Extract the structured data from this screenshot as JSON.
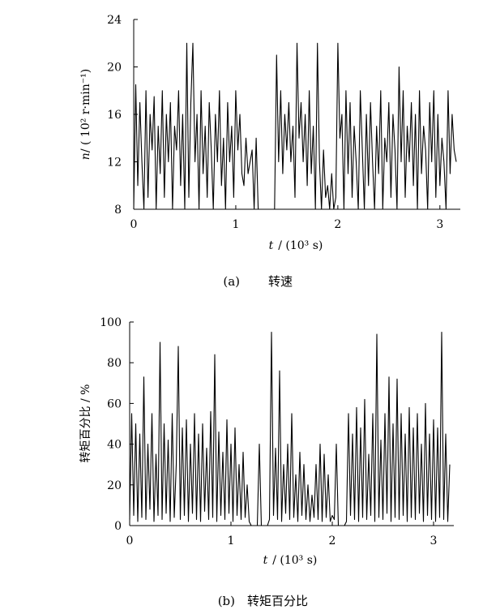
{
  "chart_data": [
    {
      "type": "line",
      "caption_label": "(a)",
      "caption_title": "转速",
      "xlabel_var": "t",
      "xlabel_unit": "/ (10³ s)",
      "ylabel_var": "n",
      "ylabel_unit": "/ ( 10² r·min⁻¹)",
      "xlim": [
        0,
        3.2
      ],
      "ylim": [
        8,
        24
      ],
      "xticks": [
        "0",
        "1",
        "2",
        "3"
      ],
      "xtick_values": [
        0,
        1,
        2,
        3
      ],
      "yticks": [
        "8",
        "12",
        "16",
        "20",
        "24"
      ],
      "ytick_values": [
        8,
        12,
        16,
        20,
        24
      ],
      "grid": false,
      "legend": "none",
      "series": [
        {
          "color": "#000000",
          "x": [
            0.0,
            0.02,
            0.04,
            0.06,
            0.08,
            0.1,
            0.12,
            0.14,
            0.16,
            0.18,
            0.2,
            0.22,
            0.24,
            0.26,
            0.28,
            0.3,
            0.32,
            0.34,
            0.36,
            0.38,
            0.4,
            0.42,
            0.44,
            0.46,
            0.48,
            0.5,
            0.52,
            0.54,
            0.56,
            0.58,
            0.6,
            0.62,
            0.64,
            0.66,
            0.68,
            0.7,
            0.72,
            0.74,
            0.76,
            0.78,
            0.8,
            0.82,
            0.84,
            0.86,
            0.88,
            0.9,
            0.92,
            0.94,
            0.96,
            0.98,
            1.0,
            1.02,
            1.04,
            1.06,
            1.08,
            1.1,
            1.12,
            1.14,
            1.16,
            1.18,
            1.2,
            1.22,
            1.24,
            1.26,
            1.28,
            1.3,
            1.32,
            1.34,
            1.36,
            1.38,
            1.4,
            1.42,
            1.44,
            1.46,
            1.48,
            1.5,
            1.52,
            1.54,
            1.56,
            1.58,
            1.6,
            1.62,
            1.64,
            1.66,
            1.68,
            1.7,
            1.72,
            1.74,
            1.76,
            1.78,
            1.8,
            1.82,
            1.84,
            1.86,
            1.88,
            1.9,
            1.92,
            1.94,
            1.96,
            1.98,
            2.0,
            2.02,
            2.04,
            2.06,
            2.08,
            2.1,
            2.12,
            2.14,
            2.16,
            2.18,
            2.2,
            2.22,
            2.24,
            2.26,
            2.28,
            2.3,
            2.32,
            2.34,
            2.36,
            2.38,
            2.4,
            2.42,
            2.44,
            2.46,
            2.48,
            2.5,
            2.52,
            2.54,
            2.56,
            2.58,
            2.6,
            2.62,
            2.64,
            2.66,
            2.68,
            2.7,
            2.72,
            2.74,
            2.76,
            2.78,
            2.8,
            2.82,
            2.84,
            2.86,
            2.88,
            2.9,
            2.92,
            2.94,
            2.96,
            2.98,
            3.0,
            3.02,
            3.04,
            3.06,
            3.08,
            3.1,
            3.12,
            3.14,
            3.16
          ],
          "y": [
            8,
            18.5,
            10,
            17,
            12,
            8,
            18,
            9,
            16,
            13,
            17.5,
            8,
            15,
            11,
            18,
            9,
            16,
            12,
            17,
            8,
            15,
            13,
            18,
            10,
            16,
            8,
            22,
            9,
            17,
            22,
            12,
            16,
            8,
            18,
            11,
            15,
            9,
            17,
            13,
            8,
            16,
            12,
            18,
            10,
            14,
            8,
            17,
            12,
            15,
            9,
            18,
            13,
            16,
            11,
            10,
            14,
            11,
            12,
            13,
            8,
            14,
            8,
            8,
            8,
            8,
            8,
            8,
            8,
            8,
            8,
            21,
            12,
            18,
            11,
            16,
            13,
            17,
            12,
            15,
            9,
            22,
            14,
            17,
            12,
            16,
            10,
            18,
            11,
            15,
            8,
            22,
            12,
            8,
            13,
            9,
            10,
            8,
            11,
            8,
            9,
            22,
            14,
            16,
            8,
            18,
            11,
            17,
            9,
            15,
            12,
            8,
            18,
            13,
            8,
            16,
            10,
            17,
            12,
            8,
            15,
            11,
            18,
            8,
            14,
            12,
            17,
            9,
            16,
            13,
            8,
            20,
            12,
            18,
            9,
            15,
            12,
            17,
            10,
            16,
            8,
            18,
            11,
            15,
            13,
            8,
            17,
            12,
            18,
            9,
            16,
            10,
            14,
            12,
            8,
            18,
            11,
            16,
            13,
            12
          ]
        }
      ]
    },
    {
      "type": "line",
      "caption_label": "(b)",
      "caption_title": "转矩百分比",
      "xlabel_var": "t",
      "xlabel_unit": "/ (10³ s)",
      "ylabel": "转矩百分比 / %",
      "xlim": [
        0,
        3.2
      ],
      "ylim": [
        0,
        100
      ],
      "xticks": [
        "0",
        "1",
        "2",
        "3"
      ],
      "xtick_values": [
        0,
        1,
        2,
        3
      ],
      "yticks": [
        "0",
        "20",
        "40",
        "60",
        "80",
        "100"
      ],
      "ytick_values": [
        0,
        20,
        40,
        60,
        80,
        100
      ],
      "grid": false,
      "legend": "none",
      "series": [
        {
          "color": "#000000",
          "x": [
            0.0,
            0.02,
            0.04,
            0.06,
            0.08,
            0.1,
            0.12,
            0.14,
            0.16,
            0.18,
            0.2,
            0.22,
            0.24,
            0.26,
            0.28,
            0.3,
            0.32,
            0.34,
            0.36,
            0.38,
            0.4,
            0.42,
            0.44,
            0.46,
            0.48,
            0.5,
            0.52,
            0.54,
            0.56,
            0.58,
            0.6,
            0.62,
            0.64,
            0.66,
            0.68,
            0.7,
            0.72,
            0.74,
            0.76,
            0.78,
            0.8,
            0.82,
            0.84,
            0.86,
            0.88,
            0.9,
            0.92,
            0.94,
            0.96,
            0.98,
            1.0,
            1.02,
            1.04,
            1.06,
            1.08,
            1.1,
            1.12,
            1.14,
            1.16,
            1.18,
            1.2,
            1.22,
            1.24,
            1.26,
            1.28,
            1.3,
            1.32,
            1.34,
            1.36,
            1.38,
            1.4,
            1.42,
            1.44,
            1.46,
            1.48,
            1.5,
            1.52,
            1.54,
            1.56,
            1.58,
            1.6,
            1.62,
            1.64,
            1.66,
            1.68,
            1.7,
            1.72,
            1.74,
            1.76,
            1.78,
            1.8,
            1.82,
            1.84,
            1.86,
            1.88,
            1.9,
            1.92,
            1.94,
            1.96,
            1.98,
            2.0,
            2.02,
            2.04,
            2.06,
            2.08,
            2.1,
            2.12,
            2.14,
            2.16,
            2.18,
            2.2,
            2.22,
            2.24,
            2.26,
            2.28,
            2.3,
            2.32,
            2.34,
            2.36,
            2.38,
            2.4,
            2.42,
            2.44,
            2.46,
            2.48,
            2.5,
            2.52,
            2.54,
            2.56,
            2.58,
            2.6,
            2.62,
            2.64,
            2.66,
            2.68,
            2.7,
            2.72,
            2.74,
            2.76,
            2.78,
            2.8,
            2.82,
            2.84,
            2.86,
            2.88,
            2.9,
            2.92,
            2.94,
            2.96,
            2.98,
            3.0,
            3.02,
            3.04,
            3.06,
            3.08,
            3.1,
            3.12,
            3.14,
            3.16
          ],
          "y": [
            3,
            55,
            5,
            50,
            2,
            45,
            4,
            73,
            3,
            40,
            8,
            55,
            2,
            35,
            5,
            90,
            3,
            50,
            6,
            42,
            2,
            55,
            4,
            30,
            88,
            3,
            48,
            5,
            52,
            2,
            40,
            6,
            55,
            3,
            45,
            2,
            50,
            7,
            38,
            3,
            56,
            4,
            84,
            2,
            46,
            5,
            36,
            3,
            52,
            6,
            40,
            2,
            48,
            5,
            30,
            3,
            36,
            4,
            20,
            2,
            0,
            0,
            0,
            0,
            40,
            0,
            0,
            0,
            0,
            3,
            95,
            5,
            38,
            3,
            76,
            2,
            30,
            6,
            40,
            3,
            55,
            4,
            25,
            2,
            36,
            5,
            30,
            3,
            20,
            2,
            15,
            4,
            30,
            3,
            40,
            2,
            35,
            4,
            25,
            2,
            5,
            3,
            40,
            0,
            0,
            0,
            0,
            2,
            55,
            5,
            45,
            3,
            58,
            2,
            48,
            4,
            62,
            3,
            35,
            5,
            55,
            2,
            94,
            4,
            42,
            3,
            55,
            6,
            73,
            2,
            50,
            4,
            72,
            3,
            55,
            5,
            45,
            2,
            58,
            4,
            48,
            3,
            55,
            6,
            40,
            2,
            60,
            5,
            45,
            3,
            52,
            2,
            48,
            4,
            95,
            3,
            45,
            2,
            30
          ]
        }
      ]
    }
  ]
}
